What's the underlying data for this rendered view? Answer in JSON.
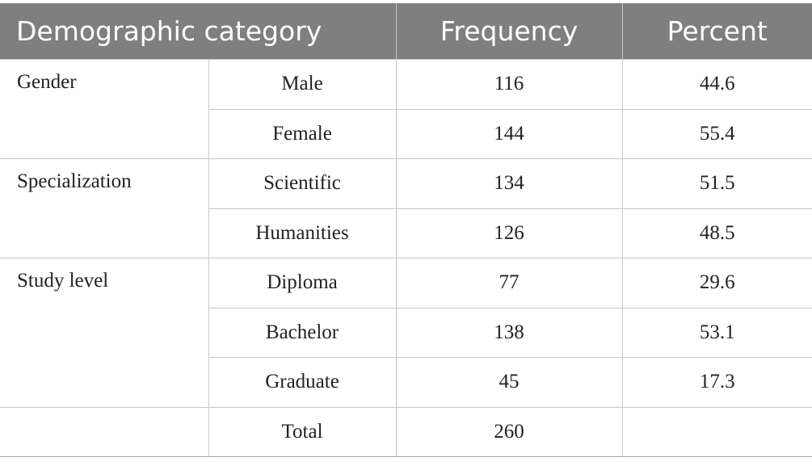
{
  "table": {
    "header": [
      "Demographic category",
      "Frequency",
      "Percent"
    ],
    "groups": [
      {
        "label": "Gender",
        "rows": [
          [
            "Male",
            116,
            44.6
          ],
          [
            "Female",
            144,
            55.4
          ]
        ]
      },
      {
        "label": "Specialization",
        "rows": [
          [
            "Scientific",
            134,
            51.5
          ],
          [
            "Humanities",
            126,
            48.5
          ]
        ]
      },
      {
        "label": "Study level",
        "rows": [
          [
            "Diploma",
            77,
            29.6
          ],
          [
            "Bachelor",
            138,
            53.1
          ],
          [
            "Graduate",
            45,
            17.3
          ]
        ]
      }
    ],
    "total": {
      "label": "Total",
      "frequency": 260
    }
  }
}
